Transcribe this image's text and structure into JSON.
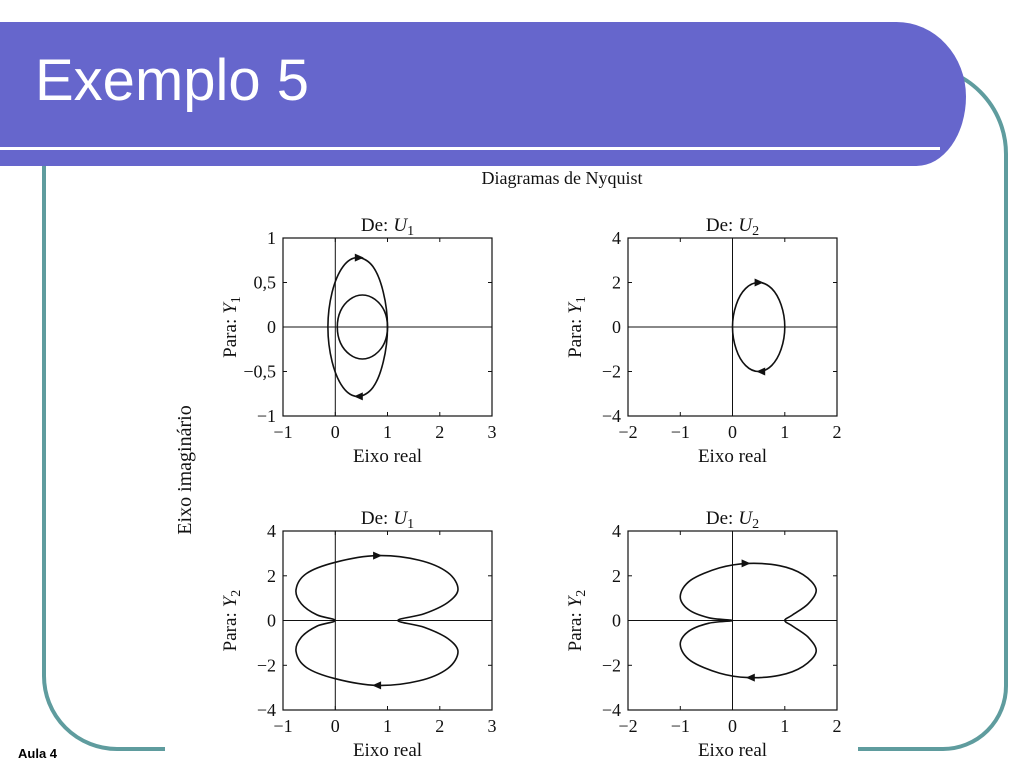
{
  "slide": {
    "title": "Exemplo 5",
    "footer": "Aula 4"
  },
  "colors": {
    "title_bar": "#6666cc",
    "title_text": "#ffffff",
    "frame": "#5f9c9e",
    "curve": "#111111"
  },
  "figure": {
    "title": "Diagramas de Nyquist",
    "ylabel": "Eixo imaginário"
  },
  "chart_data": [
    {
      "type": "line",
      "title": {
        "prefix": "De:",
        "var": "U",
        "sub": "1"
      },
      "ylabel": {
        "prefix": "Para:",
        "var": "Y",
        "sub": "1"
      },
      "xlabel": "Eixo real",
      "xlim": [
        -1,
        3
      ],
      "ylim": [
        -1,
        1
      ],
      "xticks": [
        -1,
        0,
        1,
        2,
        3
      ],
      "xtick_labels": [
        "−1",
        "0",
        "1",
        "2",
        "3"
      ],
      "yticks": [
        -1,
        -0.5,
        0,
        0.5,
        1
      ],
      "ytick_labels": [
        "−1",
        "−0,5",
        "0",
        "0,5",
        "1"
      ],
      "grid": false,
      "series": [
        {
          "closed": true,
          "x": [
            1.0,
            0.92,
            0.72,
            0.43,
            0.15,
            -0.06,
            -0.14,
            -0.06,
            0.15,
            0.43,
            0.72,
            0.92
          ],
          "y": [
            0,
            0.39,
            0.68,
            0.78,
            0.68,
            0.39,
            0,
            -0.39,
            -0.68,
            -0.78,
            -0.68,
            -0.39
          ]
        },
        {
          "closed": true,
          "x": [
            1.0,
            0.94,
            0.76,
            0.52,
            0.28,
            0.1,
            0.04,
            0.1,
            0.28,
            0.52,
            0.76,
            0.94
          ],
          "y": [
            0,
            0.18,
            0.31,
            0.36,
            0.31,
            0.18,
            0,
            -0.18,
            -0.31,
            -0.36,
            -0.31,
            -0.18
          ]
        }
      ],
      "arrows": [
        {
          "x": 0.45,
          "y": 0.78,
          "dir": "right"
        },
        {
          "x": 0.45,
          "y": -0.78,
          "dir": "left"
        }
      ]
    },
    {
      "type": "line",
      "title": {
        "prefix": "De:",
        "var": "U",
        "sub": "2"
      },
      "ylabel": {
        "prefix": "Para:",
        "var": "Y",
        "sub": "1"
      },
      "xlabel": "Eixo real",
      "xlim": [
        -2,
        2
      ],
      "ylim": [
        -4,
        4
      ],
      "xticks": [
        -2,
        -1,
        0,
        1,
        2
      ],
      "xtick_labels": [
        "−2",
        "−1",
        "0",
        "1",
        "2"
      ],
      "yticks": [
        -4,
        -2,
        0,
        2,
        4
      ],
      "ytick_labels": [
        "−4",
        "−2",
        "0",
        "2",
        "4"
      ],
      "grid": false,
      "series": [
        {
          "closed": true,
          "x": [
            1.0,
            0.93,
            0.75,
            0.5,
            0.25,
            0.07,
            0,
            0.07,
            0.25,
            0.5,
            0.75,
            0.93
          ],
          "y": [
            0,
            1.0,
            1.73,
            2.0,
            1.73,
            1.0,
            0,
            -1.0,
            -1.73,
            -2.0,
            -1.73,
            -1.0
          ]
        }
      ],
      "arrows": [
        {
          "x": 0.5,
          "y": 2.0,
          "dir": "right"
        },
        {
          "x": 0.55,
          "y": -2.0,
          "dir": "left"
        }
      ]
    },
    {
      "type": "line",
      "title": {
        "prefix": "De:",
        "var": "U",
        "sub": "1"
      },
      "ylabel": {
        "prefix": "Para:",
        "var": "Y",
        "sub": "2"
      },
      "xlabel": "Eixo real",
      "xlim": [
        -1,
        3
      ],
      "ylim": [
        -4,
        4
      ],
      "xticks": [
        -1,
        0,
        1,
        2,
        3
      ],
      "xtick_labels": [
        "−1",
        "0",
        "1",
        "2",
        "3"
      ],
      "yticks": [
        -4,
        -2,
        0,
        2,
        4
      ],
      "ytick_labels": [
        "−4",
        "−2",
        "0",
        "2",
        "4"
      ],
      "grid": false,
      "series": [
        {
          "closed": true,
          "x": [
            0,
            -0.35,
            -0.65,
            -0.75,
            -0.55,
            0.0,
            0.8,
            1.6,
            2.15,
            2.35,
            2.15,
            1.7,
            1.2,
            1.7,
            2.15,
            2.35,
            2.15,
            1.6,
            0.8,
            0.0,
            -0.55,
            -0.75,
            -0.65,
            -0.35
          ],
          "y": [
            0,
            0.25,
            0.75,
            1.4,
            2.1,
            2.6,
            2.9,
            2.7,
            2.15,
            1.4,
            0.8,
            0.3,
            0,
            -0.3,
            -0.8,
            -1.4,
            -2.15,
            -2.7,
            -2.9,
            -2.6,
            -2.1,
            -1.4,
            -0.75,
            -0.25
          ]
        }
      ],
      "arrows": [
        {
          "x": 0.8,
          "y": 2.9,
          "dir": "right"
        },
        {
          "x": 0.8,
          "y": -2.9,
          "dir": "left"
        }
      ]
    },
    {
      "type": "line",
      "title": {
        "prefix": "De:",
        "var": "U",
        "sub": "2"
      },
      "ylabel": {
        "prefix": "Para:",
        "var": "Y",
        "sub": "2"
      },
      "xlabel": "Eixo real",
      "xlim": [
        -2,
        2
      ],
      "ylim": [
        -4,
        4
      ],
      "xticks": [
        -2,
        -1,
        0,
        1,
        2
      ],
      "xtick_labels": [
        "−2",
        "−1",
        "0",
        "1",
        "2"
      ],
      "yticks": [
        -4,
        -2,
        0,
        2,
        4
      ],
      "ytick_labels": [
        "−4",
        "−2",
        "0",
        "2",
        "4"
      ],
      "grid": false,
      "series": [
        {
          "closed": true,
          "x": [
            0,
            -0.45,
            -0.85,
            -1.0,
            -0.8,
            -0.25,
            0.3,
            0.9,
            1.35,
            1.6,
            1.45,
            1.15,
            1.0,
            1.15,
            1.45,
            1.6,
            1.35,
            0.9,
            0.3,
            -0.25,
            -0.8,
            -1.0,
            -0.85,
            -0.45
          ],
          "y": [
            0,
            0.12,
            0.5,
            1.1,
            1.8,
            2.35,
            2.55,
            2.45,
            2.05,
            1.4,
            0.75,
            0.25,
            0,
            -0.25,
            -0.75,
            -1.4,
            -2.05,
            -2.45,
            -2.55,
            -2.35,
            -1.8,
            -1.1,
            -0.5,
            -0.12
          ]
        }
      ],
      "arrows": [
        {
          "x": 0.25,
          "y": 2.55,
          "dir": "right"
        },
        {
          "x": 0.35,
          "y": -2.55,
          "dir": "left"
        }
      ]
    }
  ]
}
